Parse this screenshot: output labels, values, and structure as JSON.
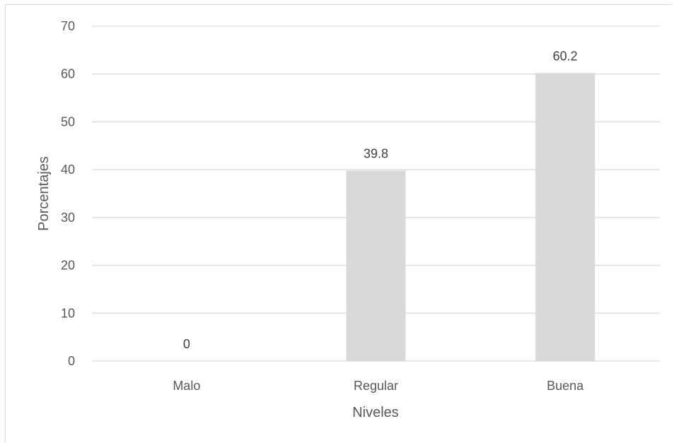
{
  "chart_data": {
    "type": "bar",
    "title": "",
    "xlabel": "Niveles",
    "ylabel": "Porcentajes",
    "categories": [
      "Malo",
      "Regular",
      "Buena"
    ],
    "values": [
      0,
      39.8,
      60.2
    ],
    "data_labels": [
      "0",
      "39.8",
      "60.2"
    ],
    "ylim": [
      0,
      70
    ],
    "yticks": [
      "0",
      "10",
      "20",
      "30",
      "40",
      "50",
      "60",
      "70"
    ],
    "grid": true,
    "legend": "none",
    "colors": {
      "bar": "#d9d9d9",
      "gridline": "#d9d9d9",
      "text": "#595959"
    }
  }
}
